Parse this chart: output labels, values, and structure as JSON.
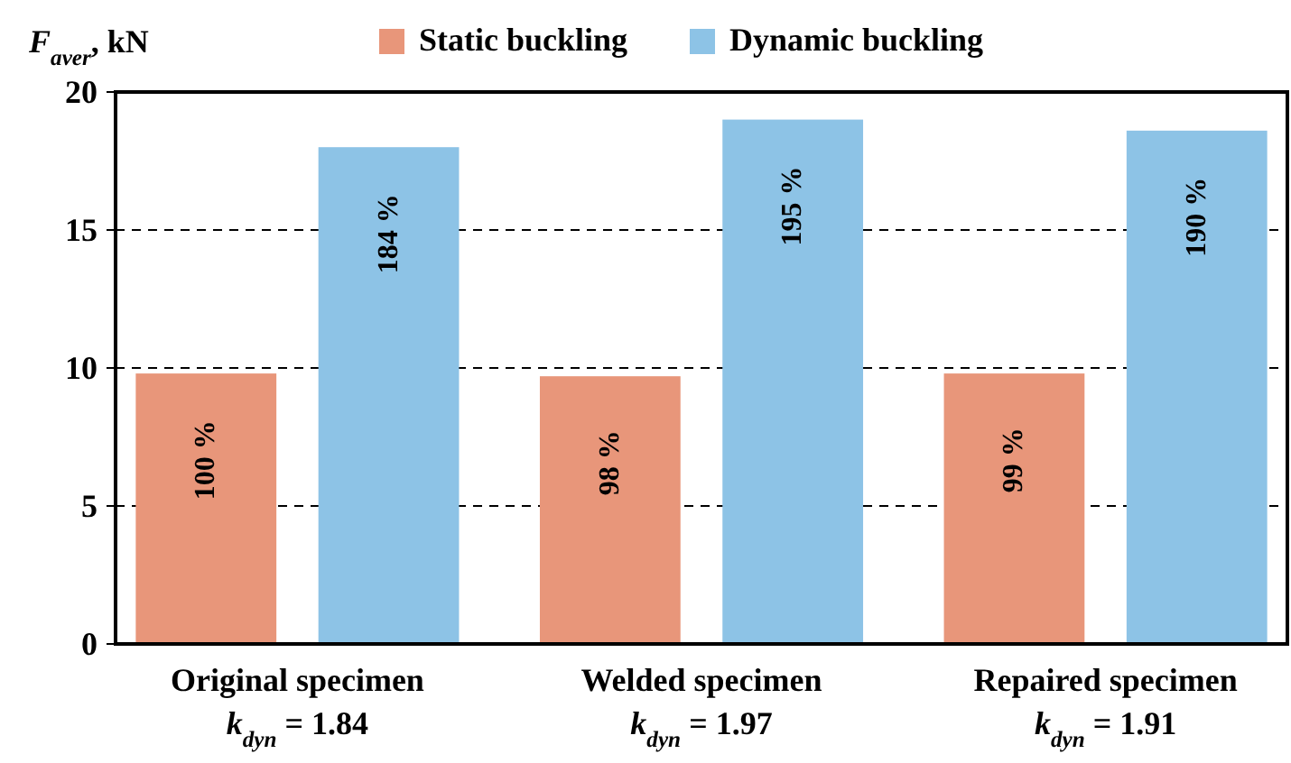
{
  "chart_data": {
    "type": "bar",
    "ylabel": "F$_{aver}$, kN",
    "categories": [
      "Original specimen\nk$_{dyn}$ = 1.84",
      "Welded specimen\nk$_{dyn}$ = 1.97",
      "Repaired specimen\nk$_{dyn}$ = 1.91"
    ],
    "series": [
      {
        "name": "Static buckling",
        "color": "#e8967a",
        "values": [
          9.8,
          9.7,
          9.8
        ]
      },
      {
        "name": "Dynamic buckling",
        "color": "#8dc3e6",
        "values": [
          18.0,
          19.0,
          18.6
        ]
      }
    ],
    "annotations": [
      "100 %",
      "184 %",
      "98 %",
      "195 %",
      "99 %",
      "190 %"
    ],
    "ylim": [
      0,
      20
    ],
    "yticks": [
      0,
      5,
      10,
      15,
      20
    ],
    "grid": "y",
    "legend": "top"
  }
}
